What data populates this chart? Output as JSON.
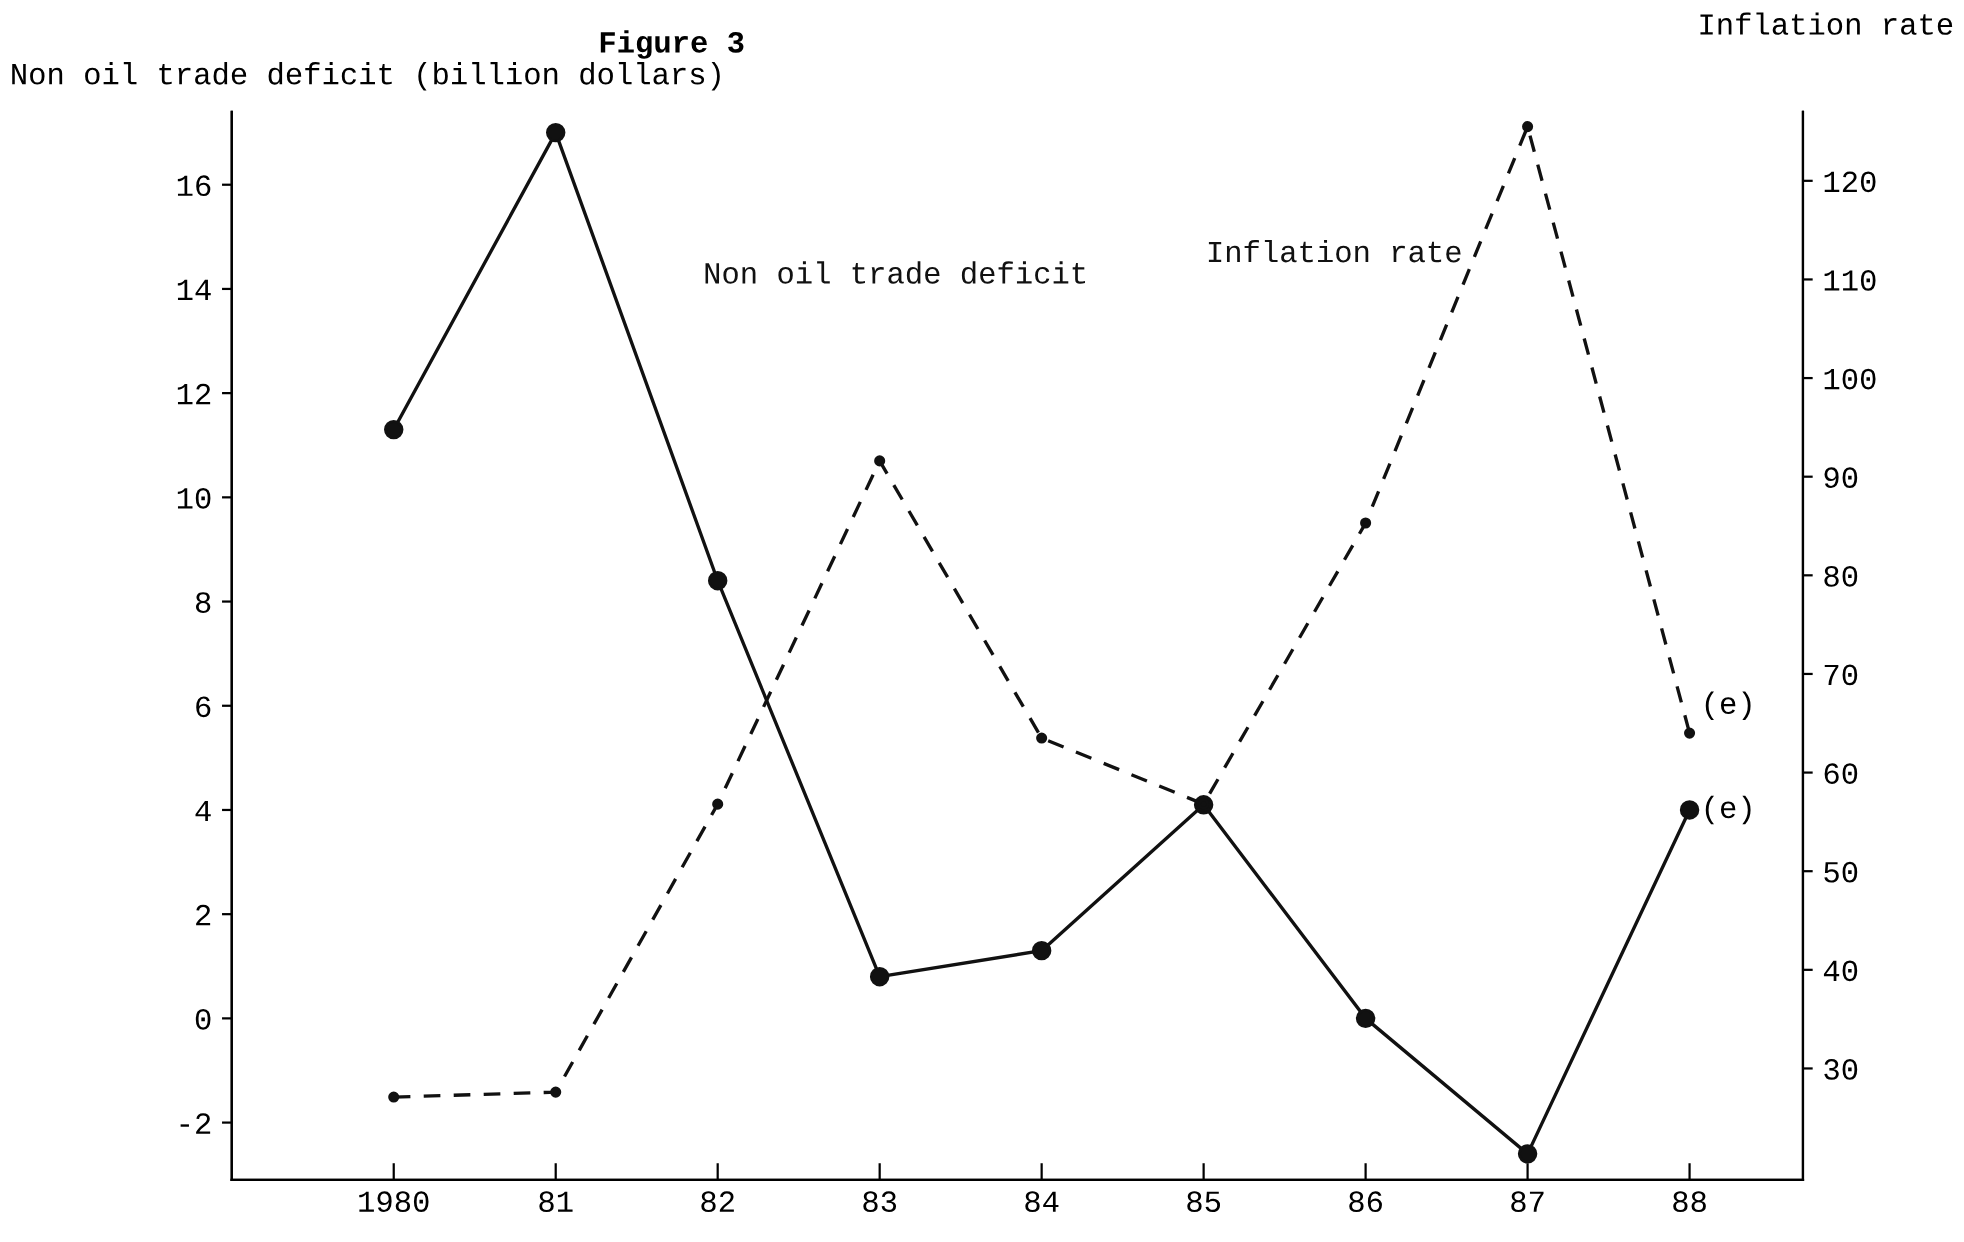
{
  "chart_data": {
    "type": "line",
    "title": "Figure 3",
    "ylabel": "Non oil trade deficit (billion dollars)",
    "y2label": "Inflation rate",
    "categories": [
      "1980",
      "81",
      "82",
      "83",
      "84",
      "85",
      "86",
      "87",
      "88"
    ],
    "series": [
      {
        "name": "Non oil trade deficit",
        "color": "#111111",
        "line_style": "solid",
        "values": [
          11.3,
          17.0,
          8.4,
          0.8,
          1.3,
          4.1,
          0.0,
          -2.6,
          4.0
        ]
      },
      {
        "name": "Inflation rate",
        "color": "#111111",
        "line_style": "dashed",
        "axis": "y2",
        "values": [
          27.1,
          27.6,
          56.8,
          91.6,
          63.5,
          56.8,
          85.3,
          125.5,
          64
        ]
      }
    ],
    "annotations": [
      {
        "text": "(e)",
        "x": "88",
        "y": 6.0
      },
      {
        "text": "(e)",
        "x": "88",
        "y": 4.0
      }
    ],
    "ylim": [
      -3.1,
      17.4
    ],
    "yticks": [
      -2,
      0,
      2,
      4,
      6,
      8,
      10,
      12,
      14,
      16
    ],
    "y2lim": [
      18.7,
      127
    ],
    "y2ticks": [
      30,
      40,
      50,
      60,
      70,
      80,
      90,
      100,
      110,
      120
    ],
    "marker": "circle",
    "grid": false,
    "legend": false
  }
}
